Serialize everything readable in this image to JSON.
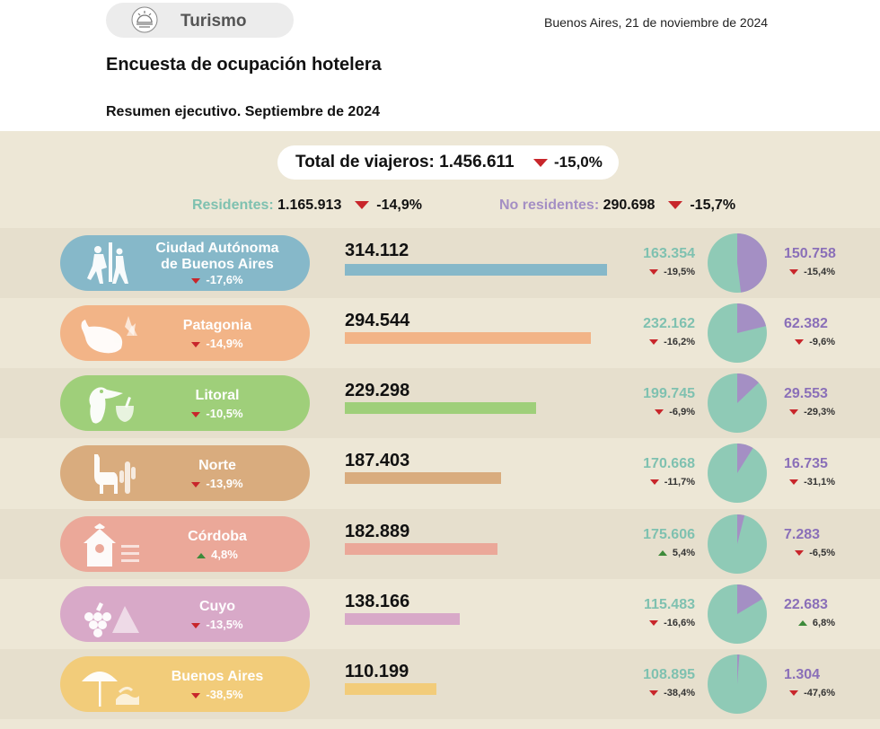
{
  "header": {
    "section": "Turismo",
    "date": "Buenos Aires, 21 de noviembre de 2024",
    "title": "Encuesta de ocupación hotelera",
    "subtitle": "Resumen ejecutivo. Septiembre de 2024"
  },
  "summary": {
    "total_label": "Total de viajeros: 1.456.611",
    "total_var": "-15,0%",
    "residents_label": "Residentes:",
    "residents_value": "1.165.913",
    "residents_var": "-14,9%",
    "nonresidents_label": "No residentes:",
    "nonresidents_value": "290.698",
    "nonresidents_var": "-15,7%"
  },
  "colors": {
    "residents": "#8fcab6",
    "nonresidents": "#a48fc4",
    "down": "#c8262b",
    "up": "#3d8a3a",
    "panel": "#ede7d6"
  },
  "chart_data": {
    "type": "bar",
    "categories": [
      "Ciudad Autónoma de Buenos Aires",
      "Patagonia",
      "Litoral",
      "Norte",
      "Córdoba",
      "Cuyo",
      "Buenos Aires"
    ],
    "values": [
      314112,
      294544,
      229298,
      187403,
      182889,
      138166,
      110199
    ],
    "series": [
      {
        "name": "Residentes",
        "values": [
          163354,
          232162,
          199745,
          170668,
          175606,
          115483,
          108895
        ]
      },
      {
        "name": "No residentes",
        "values": [
          150758,
          62382,
          29553,
          16735,
          7283,
          22683,
          1304
        ]
      }
    ]
  },
  "regions": [
    {
      "name": "Ciudad Autónoma de Buenos Aires",
      "var": "-17,6%",
      "dir": "down",
      "total": "314.112",
      "res": "163.354",
      "res_var": "-19,5%",
      "res_dir": "down",
      "nores": "150.758",
      "nores_var": "-15,4%",
      "nores_dir": "down",
      "color": "#86b8c9",
      "icon": "tango-dancers-icon"
    },
    {
      "name": "Patagonia",
      "var": "-14,9%",
      "dir": "down",
      "total": "294.544",
      "res": "232.162",
      "res_var": "-16,2%",
      "res_dir": "down",
      "nores": "62.382",
      "nores_var": "-9,6%",
      "nores_dir": "down",
      "color": "#f2b487",
      "icon": "whale-icon"
    },
    {
      "name": "Litoral",
      "var": "-10,5%",
      "dir": "down",
      "total": "229.298",
      "res": "199.745",
      "res_var": "-6,9%",
      "res_dir": "down",
      "nores": "29.553",
      "nores_var": "-29,3%",
      "nores_dir": "down",
      "color": "#9fcf7a",
      "icon": "toucan-icon"
    },
    {
      "name": "Norte",
      "var": "-13,9%",
      "dir": "down",
      "total": "187.403",
      "res": "170.668",
      "res_var": "-11,7%",
      "res_dir": "down",
      "nores": "16.735",
      "nores_var": "-31,1%",
      "nores_dir": "down",
      "color": "#d9ac7e",
      "icon": "llama-icon"
    },
    {
      "name": "Córdoba",
      "var": "4,8%",
      "dir": "up",
      "total": "182.889",
      "res": "175.606",
      "res_var": "5,4%",
      "res_dir": "up",
      "nores": "7.283",
      "nores_var": "-6,5%",
      "nores_dir": "down",
      "color": "#eba899",
      "icon": "birdhouse-icon"
    },
    {
      "name": "Cuyo",
      "var": "-13,5%",
      "dir": "down",
      "total": "138.166",
      "res": "115.483",
      "res_var": "-16,6%",
      "res_dir": "down",
      "nores": "22.683",
      "nores_var": "6,8%",
      "nores_dir": "up",
      "color": "#d8a9c8",
      "icon": "grapes-icon"
    },
    {
      "name": "Buenos Aires",
      "var": "-38,5%",
      "dir": "down",
      "total": "110.199",
      "res": "108.895",
      "res_var": "-38,4%",
      "res_dir": "down",
      "nores": "1.304",
      "nores_var": "-47,6%",
      "nores_dir": "down",
      "color": "#f2cc7a",
      "icon": "beach-umbrella-icon"
    }
  ]
}
